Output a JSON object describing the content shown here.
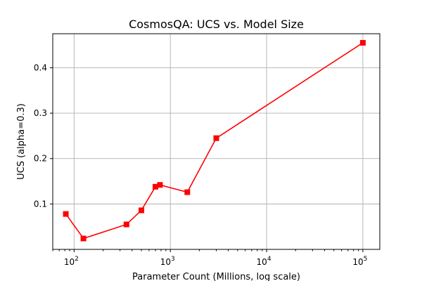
{
  "chart_data": {
    "type": "line",
    "title": "CosmosQA: UCS vs. Model Size",
    "xlabel": "Parameter Count (Millions, log scale)",
    "ylabel": "UCS (alpha=0.3)",
    "x_scale": "log",
    "xlim": [
      60,
      150000
    ],
    "ylim": [
      0.0,
      0.475
    ],
    "grid": true,
    "x_ticks": [
      {
        "value": 100,
        "base": "10",
        "exp": "2"
      },
      {
        "value": 1000,
        "base": "10",
        "exp": "3"
      },
      {
        "value": 10000,
        "base": "10",
        "exp": "4"
      },
      {
        "value": 100000,
        "base": "10",
        "exp": "5"
      }
    ],
    "y_ticks": [
      {
        "value": 0.1,
        "label": "0.1"
      },
      {
        "value": 0.2,
        "label": "0.2"
      },
      {
        "value": 0.3,
        "label": "0.3"
      },
      {
        "value": 0.4,
        "label": "0.4"
      }
    ],
    "series": [
      {
        "color": "#ff0000",
        "marker": "square",
        "x": [
          82,
          125,
          350,
          500,
          700,
          780,
          1500,
          3000,
          100000
        ],
        "y": [
          0.078,
          0.024,
          0.055,
          0.086,
          0.138,
          0.142,
          0.126,
          0.245,
          0.455
        ]
      }
    ]
  }
}
